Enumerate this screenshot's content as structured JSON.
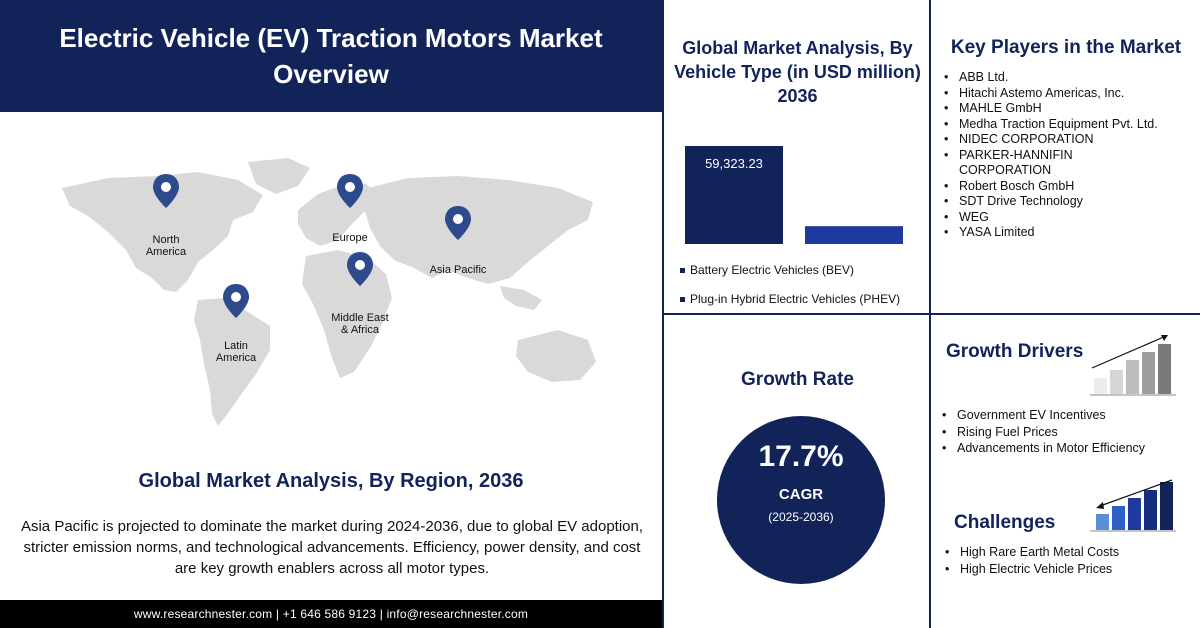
{
  "header": {
    "title": "Electric Vehicle (EV) Traction Motors Market Overview"
  },
  "map": {
    "pins": [
      {
        "label": "North America"
      },
      {
        "label": "Europe"
      },
      {
        "label": "Asia Pacific"
      },
      {
        "label": "Middle East & Africa"
      },
      {
        "label": "Latin America"
      }
    ],
    "land_color": "#d9d9d9",
    "pin_color": "#2c4a8c"
  },
  "region_section": {
    "title": "Global Market Analysis, By Region, 2036",
    "description": "Asia Pacific is projected to dominate the market during 2024-2036, due to global EV adoption, stricter emission norms, and technological advancements. Efficiency, power density, and cost are key growth enablers across all motor types."
  },
  "footer": {
    "text": "www.researchnester.com | +1 646 586 9123 | info@researchnester.com"
  },
  "vehicle_type": {
    "title": "Global Market Analysis, By Vehicle Type (in USD million) 2036",
    "legend": [
      "Battery Electric Vehicles (BEV)",
      "Plug-in Hybrid Electric Vehicles (PHEV)"
    ]
  },
  "chart_data": {
    "type": "bar",
    "title": "Global Market Analysis, By Vehicle Type (in USD million) 2036",
    "categories": [
      "Battery Electric Vehicles (BEV)",
      "Plug-in Hybrid Electric Vehicles (PHEV)"
    ],
    "values": [
      59323.23,
      10800
    ],
    "value_labels": [
      "59,323.23",
      ""
    ],
    "colors": [
      "#12235a",
      "#1f3a9e"
    ],
    "ylim": [
      0,
      59323.23
    ],
    "legend_position": "bottom",
    "grid": false
  },
  "key_players": {
    "title": "Key Players in the Market",
    "items": [
      "ABB Ltd.",
      "Hitachi Astemo Americas, Inc.",
      "MAHLE GmbH",
      "Medha Traction Equipment Pvt. Ltd.",
      "NIDEC CORPORATION",
      "PARKER-HANNIFIN CORPORATION",
      "Robert Bosch GmbH",
      "SDT Drive Technology",
      "WEG",
      "YASA Limited"
    ]
  },
  "growth_rate": {
    "title": "Growth Rate",
    "value": "17.7%",
    "label": "CAGR",
    "period": "(2025-2036)"
  },
  "growth_drivers": {
    "title": "Growth Drivers",
    "items": [
      "Government EV Incentives",
      "Rising Fuel Prices",
      "Advancements in Motor Efficiency"
    ]
  },
  "challenges": {
    "title": "Challenges",
    "items": [
      "High Rare Earth Metal Costs",
      "High Electric Vehicle Prices"
    ]
  },
  "colors": {
    "navy": "#12235a",
    "blue": "#1f3a9e",
    "grey": "#d9d9d9"
  }
}
